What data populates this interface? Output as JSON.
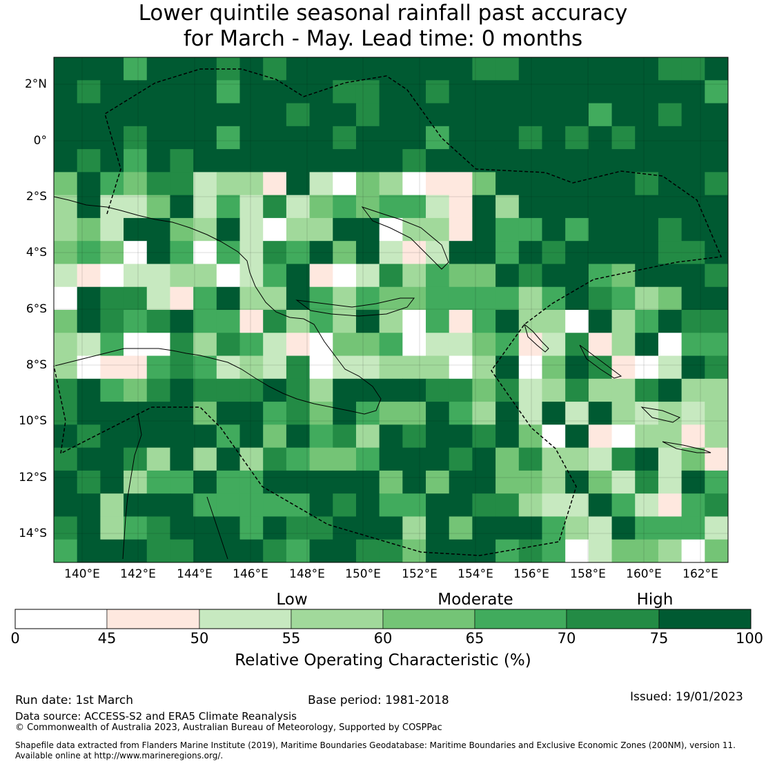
{
  "title": {
    "line1": "Lower quintile seasonal rainfall past accuracy",
    "line2": "for March - May. Lead time: 0 months"
  },
  "map": {
    "lat_labels": [
      "2°N",
      "0°",
      "2°S",
      "4°S",
      "6°S",
      "8°S",
      "10°S",
      "12°S",
      "14°S"
    ],
    "lon_labels": [
      "140°E",
      "142°E",
      "144°E",
      "146°E",
      "148°E",
      "150°E",
      "152°E",
      "154°E",
      "156°E",
      "158°E",
      "160°E",
      "162°E"
    ],
    "lon_range": [
      139,
      163
    ],
    "lat_range": [
      -15,
      3
    ]
  },
  "colorbar": {
    "categories": [
      "Low",
      "Moderate",
      "High"
    ],
    "ticks": [
      "0",
      "45",
      "50",
      "55",
      "60",
      "65",
      "70",
      "75",
      "100"
    ],
    "colors": [
      "#ffffff",
      "#fee8df",
      "#c7e9c0",
      "#a1d99b",
      "#74c476",
      "#41ab5d",
      "#238b45",
      "#005a32"
    ],
    "title": "Relative Operating Characteristic (%)"
  },
  "footer": {
    "run_date": "Run date: 1st March",
    "base_period": "Base period: 1981-2018",
    "issued": "Issued: 19/01/2023",
    "data_source": "Data source: ACCESS-S2 and ERA5 Climate Reanalysis",
    "copyright": "© Commonwealth of Australia 2023, Australian Bureau of Meteorology, Supported by COSPPac",
    "shapefile_1": "Shapefile data extracted from Flanders Marine Institute (2019), Maritime Boundaries Geodatabase: Maritime Boundaries and Exclusive Economic Zones (200NM), version 11.",
    "shapefile_2": "Available online at http://www.marineregions.org/."
  }
}
